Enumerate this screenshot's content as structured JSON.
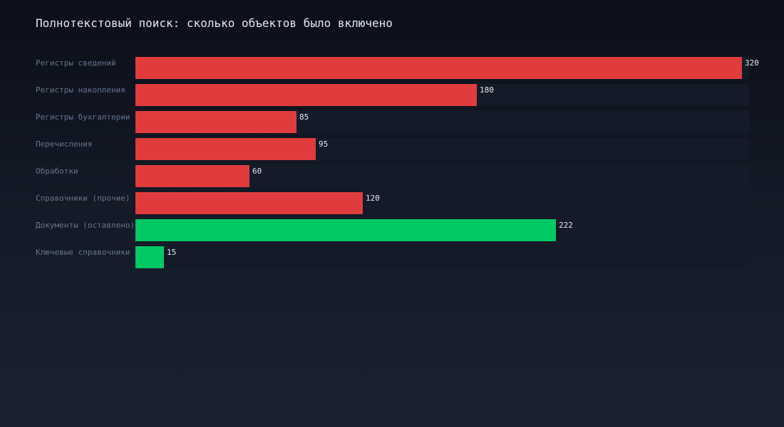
{
  "title": "Полнотекстовый поиск: сколько объектов было включено",
  "colors": {
    "excluded": "#e03c3e",
    "kept": "#00c864",
    "track": "#131b28"
  },
  "chart_data": {
    "type": "bar",
    "orientation": "horizontal",
    "title": "Полнотекстовый поиск: сколько объектов было включено",
    "xlabel": "",
    "ylabel": "",
    "grid": false,
    "xlim": [
      0,
      320
    ],
    "categories": [
      "Регистры сведений",
      "Регистры накопления",
      "Регистры бухгалтерии",
      "Перечисления",
      "Обработки",
      "Справочники (прочие)",
      "Документы (оставлено)",
      "Ключевые справочники"
    ],
    "values": [
      320,
      180,
      85,
      95,
      60,
      120,
      222,
      15
    ],
    "bar_colors": [
      "#e03c3e",
      "#e03c3e",
      "#e03c3e",
      "#e03c3e",
      "#e03c3e",
      "#e03c3e",
      "#00c864",
      "#00c864"
    ]
  },
  "rows": [
    {
      "label": "Регистры сведений",
      "value": "320"
    },
    {
      "label": "Регистры накопления",
      "value": "180"
    },
    {
      "label": "Регистры бухгалтерии",
      "value": "85"
    },
    {
      "label": "Перечисления",
      "value": "95"
    },
    {
      "label": "Обработки",
      "value": "60"
    },
    {
      "label": "Справочники (прочие)",
      "value": "120"
    },
    {
      "label": "Документы (оставлено)",
      "value": "222"
    },
    {
      "label": "Ключевые справочники",
      "value": "15"
    }
  ]
}
